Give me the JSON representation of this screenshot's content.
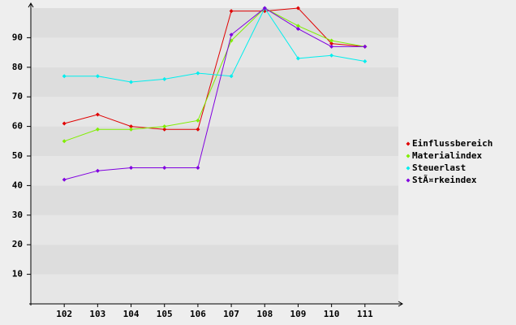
{
  "chart_data": {
    "type": "line",
    "categories": [
      "102",
      "103",
      "104",
      "105",
      "106",
      "107",
      "108",
      "109",
      "110",
      "111"
    ],
    "series": [
      {
        "name": "Einflussbereich",
        "color": "#e00000",
        "values": [
          61,
          64,
          60,
          59,
          59,
          99,
          99,
          100,
          88,
          87
        ]
      },
      {
        "name": "Materialindex",
        "color": "#80ee00",
        "values": [
          55,
          59,
          59,
          60,
          62,
          89,
          100,
          94,
          89,
          87
        ]
      },
      {
        "name": "Steuerlast",
        "color": "#00eeee",
        "values": [
          77,
          77,
          75,
          76,
          78,
          77,
          100,
          83,
          84,
          82
        ]
      },
      {
        "name": "StÃ¤rkeindex",
        "color": "#8000e0",
        "values": [
          42,
          45,
          46,
          46,
          46,
          91,
          100,
          93,
          87,
          87
        ]
      }
    ],
    "ylim": [
      0,
      100
    ],
    "yticks": [
      10,
      20,
      30,
      40,
      50,
      60,
      70,
      80,
      90
    ],
    "grid": true,
    "legend": "right"
  }
}
